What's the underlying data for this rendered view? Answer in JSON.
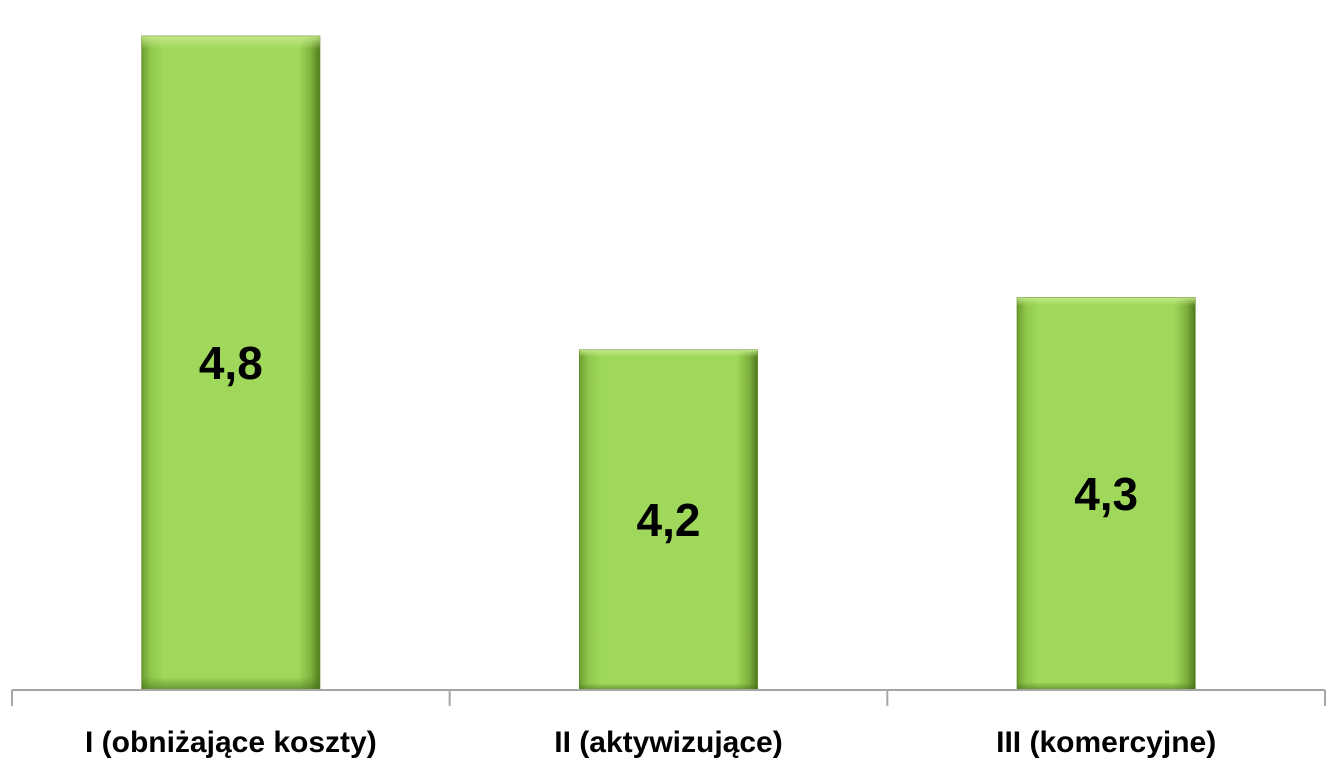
{
  "chart_data": {
    "type": "bar",
    "categories": [
      "I (obniżające koszty)",
      "II (aktywizujące)",
      "III (komercyjne)"
    ],
    "values": [
      4.8,
      4.2,
      4.3
    ],
    "value_labels": [
      "4,8",
      "4,2",
      "4,3"
    ],
    "title": "",
    "xlabel": "",
    "ylabel": "",
    "ylim": [
      3.55,
      4.85
    ],
    "grid": false,
    "legend": "none",
    "colors": {
      "bar": "#9bd155",
      "bar_edge": "#5f8f27",
      "axis": "#a6a6a6",
      "text": "#000000"
    }
  }
}
